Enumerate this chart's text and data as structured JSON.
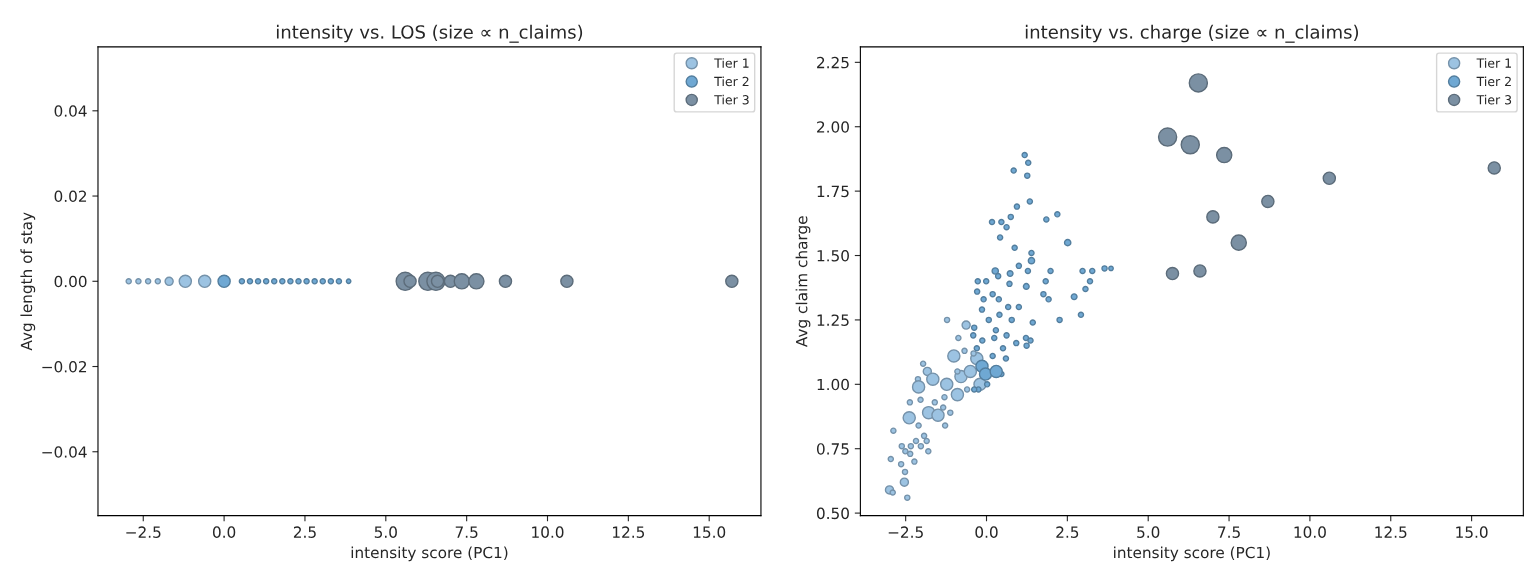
{
  "chart_data": [
    {
      "type": "bubble",
      "title": "intensity vs. LOS (size ∝ n_claims)",
      "xlabel": "intensity score (PC1)",
      "ylabel": "Avg length of stay",
      "xlim": [
        -3.9,
        16.6
      ],
      "xticks": [
        {
          "value": -2.5,
          "label": "−2.5"
        },
        {
          "value": 0,
          "label": "0.0"
        },
        {
          "value": 2.5,
          "label": "2.5"
        },
        {
          "value": 5,
          "label": "5.0"
        },
        {
          "value": 7.5,
          "label": "7.5"
        },
        {
          "value": 10,
          "label": "10.0"
        },
        {
          "value": 12.5,
          "label": "12.5"
        },
        {
          "value": 15,
          "label": "15.0"
        }
      ],
      "ylim": [
        -0.055,
        0.055
      ],
      "yticks": [
        {
          "value": -0.04,
          "label": "−0.04"
        },
        {
          "value": -0.02,
          "label": "−0.02"
        },
        {
          "value": 0,
          "label": "0.00"
        },
        {
          "value": 0.02,
          "label": "0.02"
        },
        {
          "value": 0.04,
          "label": "0.04"
        }
      ],
      "legend": "top right",
      "grid": false,
      "series": [
        {
          "name": "Tier 1",
          "color": "#9cc3e2",
          "x": [
            -2.95,
            -2.65,
            -2.35,
            -2.05,
            -1.7,
            -1.2,
            -0.6
          ],
          "values": [
            0,
            0,
            0,
            0,
            0,
            0,
            0
          ],
          "sizes": [
            0.08,
            0.08,
            0.08,
            0.08,
            0.2,
            0.45,
            0.45
          ]
        },
        {
          "name": "Tier 2",
          "color": "#6fa8d3",
          "x": [
            0.0,
            0.55,
            0.8,
            1.05,
            1.3,
            1.55,
            1.8,
            2.05,
            2.3,
            2.55,
            2.8,
            3.05,
            3.3,
            3.55,
            3.85
          ],
          "values": [
            0,
            0,
            0,
            0,
            0,
            0,
            0,
            0,
            0,
            0,
            0,
            0,
            0,
            0,
            0
          ],
          "sizes": [
            0.45,
            0.08,
            0.08,
            0.08,
            0.08,
            0.08,
            0.08,
            0.08,
            0.08,
            0.08,
            0.08,
            0.08,
            0.08,
            0.08,
            0.06
          ]
        },
        {
          "name": "Tier 3",
          "color": "#7b90a3",
          "x": [
            5.6,
            5.75,
            6.3,
            6.55,
            6.6,
            7.0,
            7.35,
            7.8,
            8.7,
            10.6,
            15.7
          ],
          "values": [
            0,
            0,
            0,
            0,
            0,
            0,
            0,
            0,
            0,
            0,
            0
          ],
          "sizes": [
            1,
            0.45,
            1,
            1,
            0.45,
            0.45,
            0.7,
            0.7,
            0.45,
            0.45,
            0.45
          ]
        }
      ]
    },
    {
      "type": "bubble",
      "title": "intensity vs. charge (size ∝ n_claims)",
      "xlabel": "intensity score (PC1)",
      "ylabel": "Avg claim charge",
      "xlim": [
        -3.9,
        16.6
      ],
      "xticks": [
        {
          "value": -2.5,
          "label": "−2.5"
        },
        {
          "value": 0,
          "label": "0.0"
        },
        {
          "value": 2.5,
          "label": "2.5"
        },
        {
          "value": 5,
          "label": "5.0"
        },
        {
          "value": 7.5,
          "label": "7.5"
        },
        {
          "value": 10,
          "label": "10.0"
        },
        {
          "value": 12.5,
          "label": "12.5"
        },
        {
          "value": 15,
          "label": "15.0"
        }
      ],
      "ylim": [
        0.49,
        2.31
      ],
      "yticks": [
        {
          "value": 0.5,
          "label": "0.50"
        },
        {
          "value": 0.75,
          "label": "0.75"
        },
        {
          "value": 1,
          "label": "1.00"
        },
        {
          "value": 1.25,
          "label": "1.25"
        },
        {
          "value": 1.5,
          "label": "1.50"
        },
        {
          "value": 1.75,
          "label": "1.75"
        },
        {
          "value": 2,
          "label": "2.00"
        },
        {
          "value": 2.25,
          "label": "2.25"
        }
      ],
      "legend": "top right",
      "grid": false,
      "series": [
        {
          "name": "Tier 1",
          "color": "#9cc3e2",
          "x": [
            -1.22,
            -0.63,
            -0.87,
            -0.68,
            -1.01,
            -1.96,
            -1.83,
            -2.12,
            -1.66,
            -2.1,
            -1.23,
            -0.79,
            -0.9,
            -2.37,
            -2.04,
            -2.39,
            -1.79,
            -1.5,
            -1.34,
            -1.12,
            -2.1,
            -1.28,
            -2.88,
            -1.93,
            -2.18,
            -2.62,
            -2.34,
            -2.51,
            -2.36,
            -2.03,
            -1.85,
            -1.8,
            -2.96,
            -2.64,
            -2.23,
            -2.52,
            -2.54,
            -3.0,
            -2.9,
            -2.45,
            -0.5,
            -0.3,
            -0.6,
            -0.2,
            -0.4,
            -1.3,
            -0.9,
            -1.6
          ],
          "values": [
            1.25,
            1.23,
            1.18,
            1.13,
            1.11,
            1.08,
            1.05,
            1.02,
            1.02,
            0.99,
            1.0,
            1.03,
            0.96,
            0.93,
            0.94,
            0.87,
            0.89,
            0.88,
            0.91,
            0.89,
            0.84,
            0.84,
            0.82,
            0.8,
            0.78,
            0.76,
            0.76,
            0.74,
            0.73,
            0.76,
            0.78,
            0.74,
            0.71,
            0.69,
            0.7,
            0.66,
            0.62,
            0.59,
            0.58,
            0.56,
            1.05,
            1.1,
            0.98,
            1.0,
            1.12,
            0.95,
            1.05,
            0.93
          ],
          "sizes": [
            0.08,
            0.2,
            0.08,
            0.08,
            0.45,
            0.08,
            0.2,
            0.08,
            0.45,
            0.45,
            0.45,
            0.45,
            0.45,
            0.08,
            0.08,
            0.45,
            0.45,
            0.45,
            0.08,
            0.08,
            0.08,
            0.08,
            0.08,
            0.08,
            0.08,
            0.08,
            0.08,
            0.08,
            0.08,
            0.08,
            0.08,
            0.08,
            0.08,
            0.08,
            0.08,
            0.08,
            0.2,
            0.2,
            0.08,
            0.08,
            0.45,
            0.45,
            0.08,
            0.45,
            0.08,
            0.08,
            0.08,
            0.08
          ]
        },
        {
          "name": "Tier 2",
          "color": "#6fa8d3",
          "x": [
            1.18,
            1.29,
            0.84,
            1.26,
            1.34,
            0.94,
            2.19,
            1.85,
            0.17,
            0.46,
            0.75,
            0.62,
            0.42,
            0.87,
            2.51,
            1.39,
            1.39,
            1.0,
            0.27,
            0.73,
            1.28,
            1.98,
            2.97,
            3.27,
            3.65,
            3.2,
            3.06,
            2.71,
            1.92,
            1.76,
            1.23,
            1.83,
            -0.27,
            -0.01,
            0.36,
            0.71,
            -0.29,
            0.19,
            -0.09,
            0.38,
            2.92,
            2.26,
            1.43,
            1.0,
            0.67,
            -0.14,
            0.4,
            0.78,
            0.07,
            -0.38,
            0.29,
            0.62,
            1.22,
            1.36,
            -0.13,
            0.92,
            1.24,
            0.6,
            0.46,
            0.02,
            -0.25,
            -0.38,
            -0.14,
            -0.03,
            0.19,
            -0.3,
            -0.41,
            0.24,
            0.51,
            0.3,
            3.85
          ],
          "values": [
            1.89,
            1.86,
            1.83,
            1.81,
            1.71,
            1.69,
            1.66,
            1.64,
            1.63,
            1.63,
            1.65,
            1.61,
            1.57,
            1.53,
            1.55,
            1.51,
            1.48,
            1.46,
            1.44,
            1.43,
            1.44,
            1.44,
            1.44,
            1.44,
            1.45,
            1.4,
            1.37,
            1.34,
            1.33,
            1.35,
            1.38,
            1.4,
            1.4,
            1.4,
            1.42,
            1.39,
            1.36,
            1.35,
            1.33,
            1.33,
            1.27,
            1.25,
            1.24,
            1.3,
            1.3,
            1.29,
            1.27,
            1.25,
            1.25,
            1.22,
            1.21,
            1.19,
            1.18,
            1.17,
            1.17,
            1.16,
            1.15,
            1.1,
            1.04,
            1.0,
            0.98,
            0.98,
            1.07,
            1.04,
            1.11,
            1.14,
            1.19,
            1.18,
            1.14,
            1.05,
            1.45
          ],
          "sizes": [
            0.08,
            0.08,
            0.08,
            0.08,
            0.08,
            0.08,
            0.08,
            0.08,
            0.08,
            0.08,
            0.08,
            0.08,
            0.08,
            0.08,
            0.12,
            0.08,
            0.12,
            0.08,
            0.12,
            0.1,
            0.08,
            0.08,
            0.08,
            0.08,
            0.08,
            0.08,
            0.08,
            0.1,
            0.08,
            0.08,
            0.1,
            0.08,
            0.08,
            0.08,
            0.08,
            0.08,
            0.08,
            0.08,
            0.08,
            0.08,
            0.08,
            0.08,
            0.08,
            0.08,
            0.08,
            0.08,
            0.08,
            0.08,
            0.08,
            0.08,
            0.08,
            0.08,
            0.08,
            0.08,
            0.08,
            0.08,
            0.08,
            0.08,
            0.08,
            0.08,
            0.08,
            0.08,
            0.45,
            0.45,
            0.08,
            0.08,
            0.08,
            0.08,
            0.08,
            0.45,
            0.06
          ]
        },
        {
          "name": "Tier 3",
          "color": "#7b90a3",
          "x": [
            5.6,
            5.75,
            6.3,
            6.55,
            6.6,
            7.0,
            7.35,
            7.8,
            8.7,
            10.6,
            15.7
          ],
          "values": [
            1.96,
            1.43,
            1.93,
            2.17,
            1.44,
            1.65,
            1.89,
            1.55,
            1.71,
            1.8,
            1.84
          ],
          "sizes": [
            1,
            0.45,
            1,
            1,
            0.45,
            0.45,
            0.7,
            0.7,
            0.45,
            0.45,
            0.45
          ]
        }
      ]
    }
  ]
}
